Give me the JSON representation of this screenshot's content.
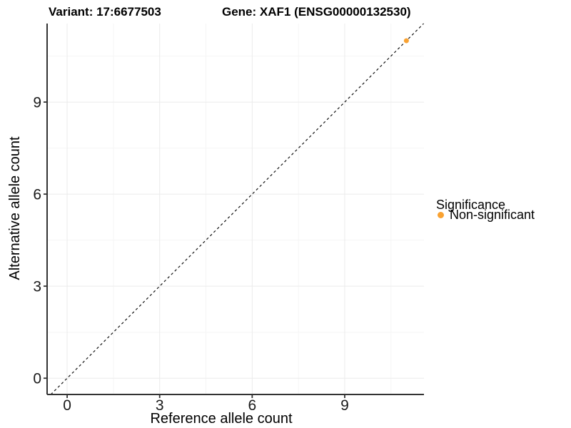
{
  "chart_data": {
    "type": "scatter",
    "title_left": "Variant: 17:6677503",
    "title_right": "Gene: XAF1 (ENSG00000132530)",
    "xlabel": "Reference allele count",
    "ylabel": "Alternative allele count",
    "xlim": [
      -0.65,
      11.57
    ],
    "ylim": [
      -0.53,
      11.56
    ],
    "xticks": [
      0,
      3,
      6,
      9
    ],
    "yticks": [
      0,
      3,
      6,
      9
    ],
    "xticks_minor": [
      1.5,
      4.5,
      7.5,
      10.5
    ],
    "yticks_minor": [
      1.5,
      4.5,
      7.5,
      10.5
    ],
    "grid": true,
    "points": [
      {
        "x": 11,
        "y": 11,
        "series": "Non-significant"
      }
    ],
    "reference_line": {
      "style": "dashed",
      "slope": 1,
      "intercept": 0
    },
    "legend": {
      "title": "Significance",
      "position": "right",
      "items": [
        {
          "label": "Non-significant",
          "color": "#F9A232"
        }
      ]
    },
    "colors": {
      "point": "#F9A232",
      "grid_major": "#EBEBEB",
      "grid_minor": "#F5F5F5",
      "axis_line": "#333333",
      "tick": "#333333",
      "tick_label": "#1A1A1A",
      "reference_line": "#111111"
    }
  }
}
